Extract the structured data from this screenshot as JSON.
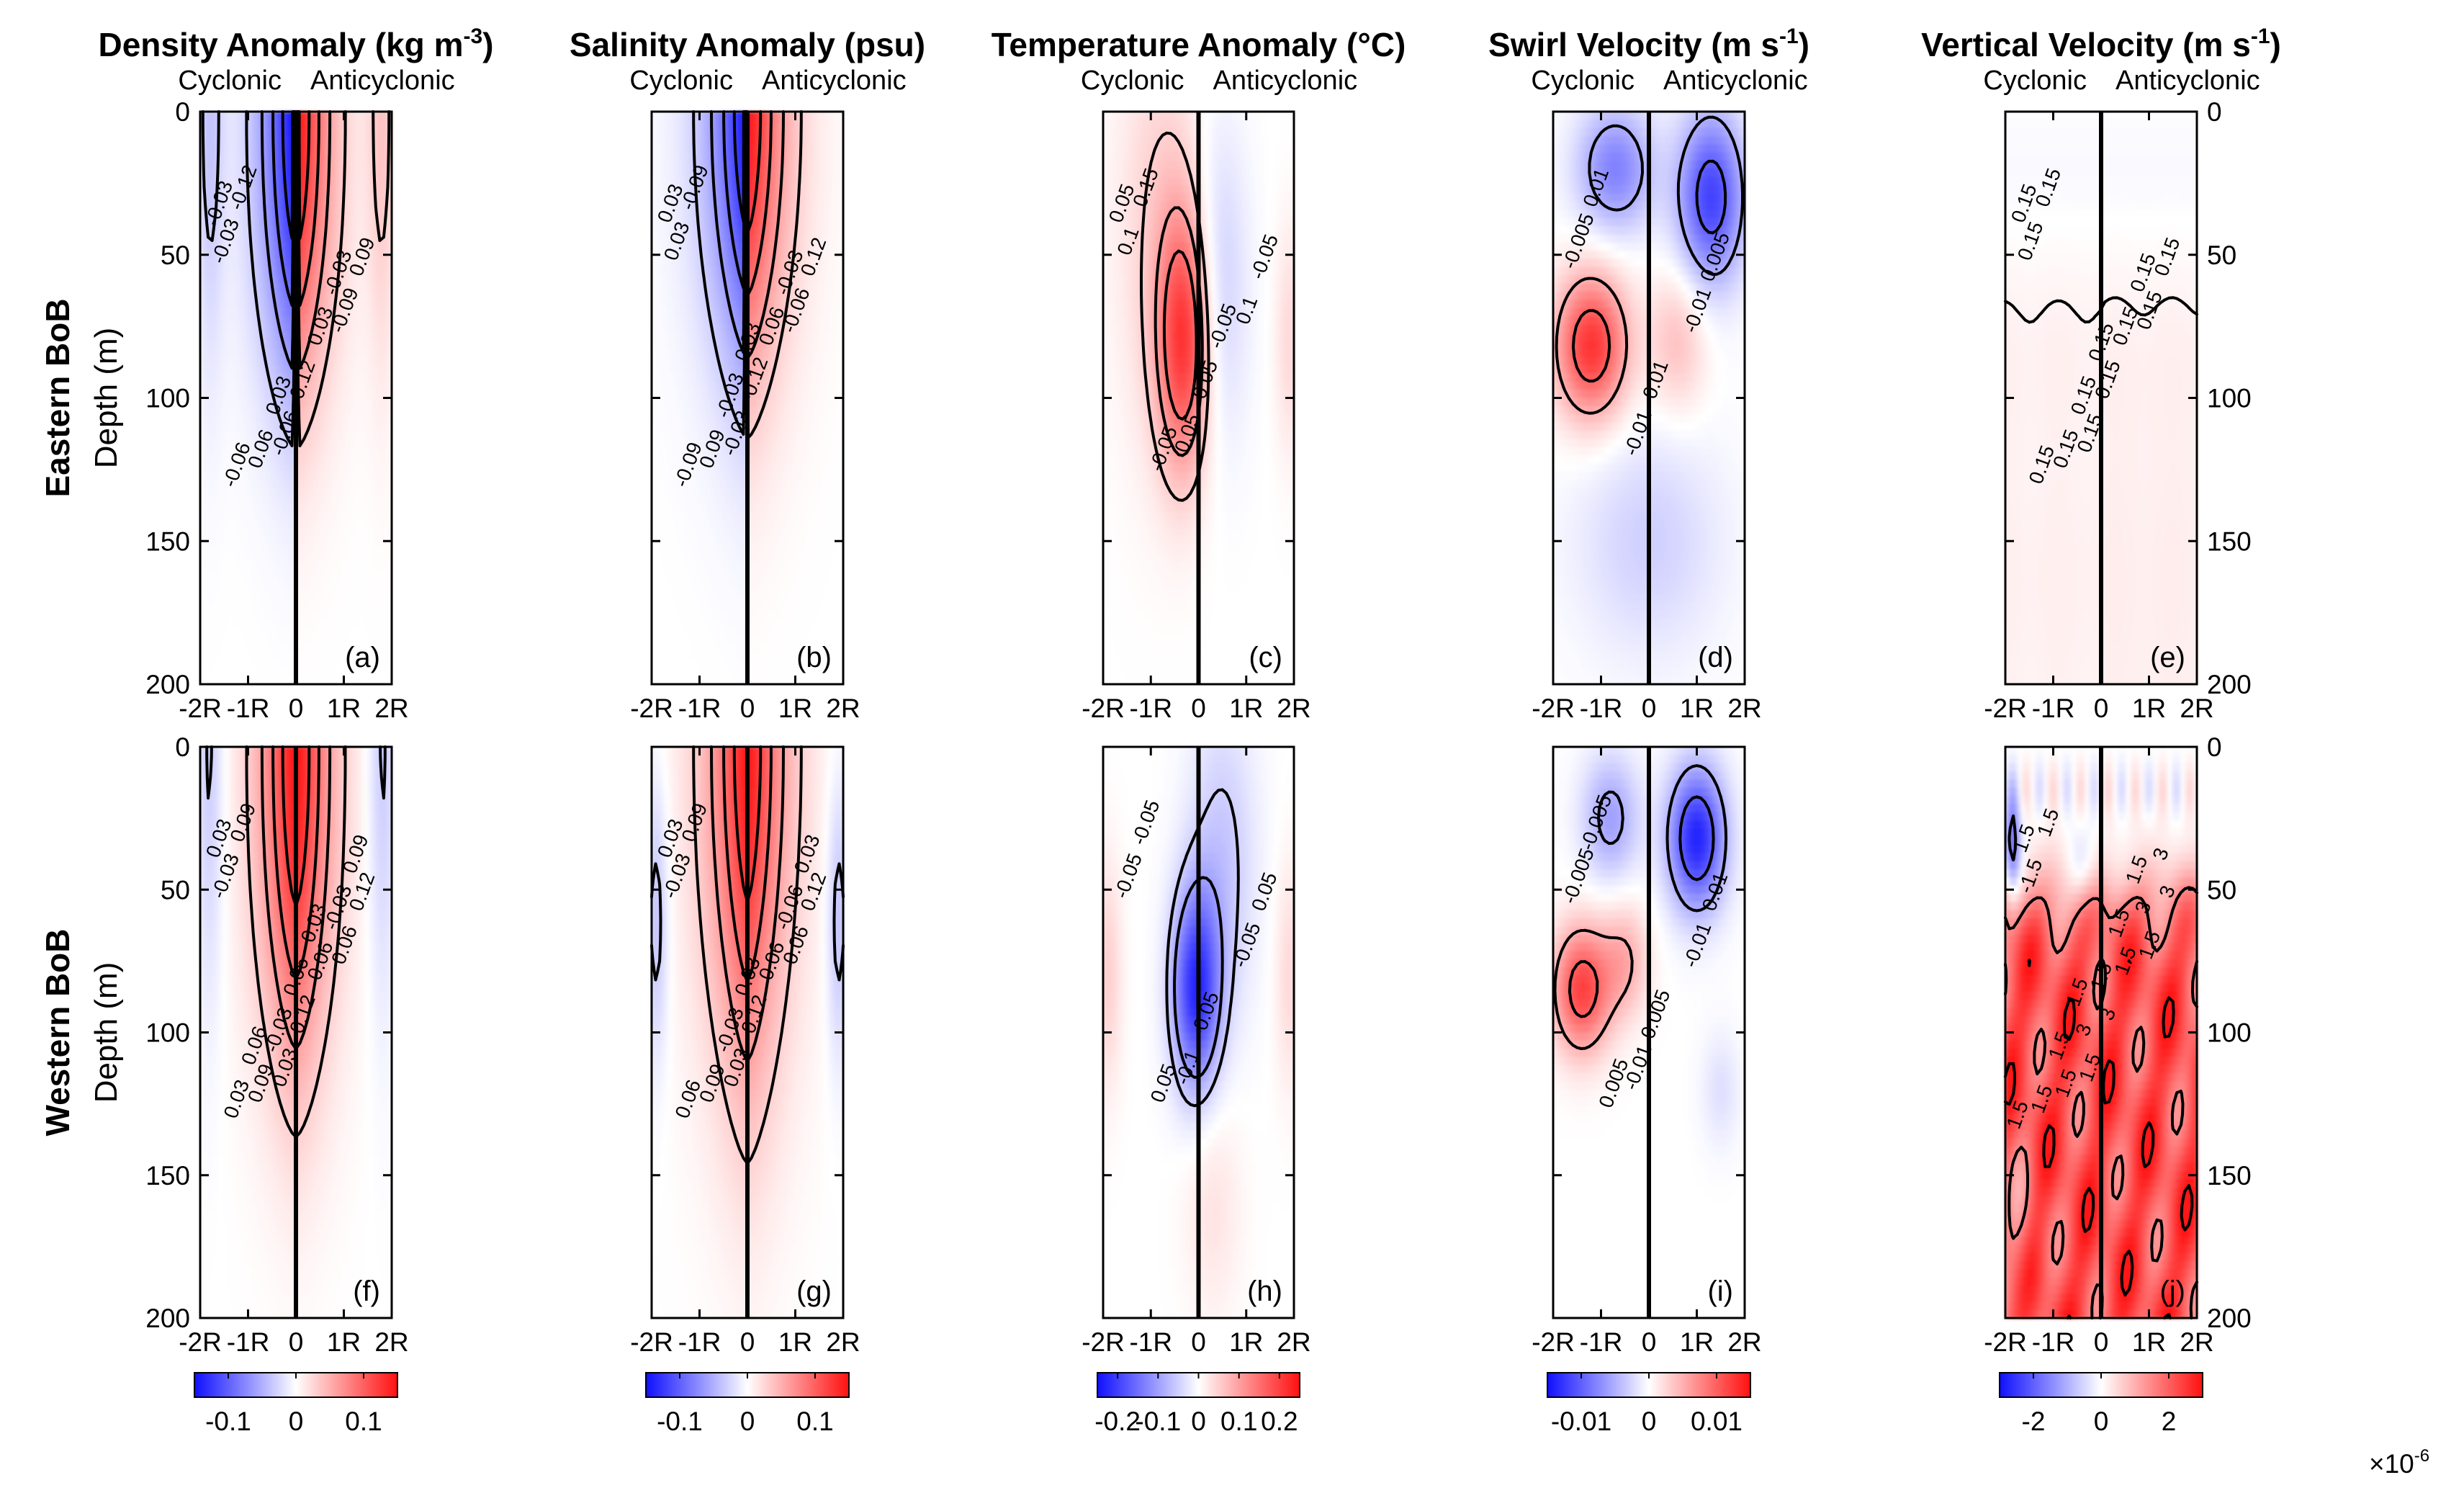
{
  "figure": {
    "row_labels": [
      "Eastern BoB",
      "Western BoB"
    ],
    "ylabel": "Depth (m)",
    "exponent_label": "×10",
    "exponent_power": "-6"
  },
  "chart_data": [
    {
      "type": "heatmap",
      "id": "density",
      "title": "Density Anomaly (kg m",
      "title_sup": "-3",
      "title_end": ")",
      "subtitles": [
        "Cyclonic",
        "Anticyclonic"
      ],
      "x_ticks": [
        "-2R",
        "-1R",
        "0",
        "1R",
        "2R"
      ],
      "y_ticks": [
        "0",
        "50",
        "100",
        "150",
        "200"
      ],
      "ylim": [
        0,
        200
      ],
      "colorbar": {
        "range": [
          -0.15,
          0.15
        ],
        "ticks": [
          "-0.1",
          "0",
          "0.1"
        ],
        "tick_values": [
          -0.1,
          0,
          0.1
        ]
      },
      "panels": [
        {
          "row": "Eastern BoB",
          "letter": "(a)",
          "peak": 0.15,
          "decay": 48,
          "contours": [
            "-0.03",
            "-0.06",
            "-0.09",
            "-0.12",
            "0.12",
            "0.09",
            "0.06",
            "0.03",
            "-0.03",
            "0.03",
            "-0.03",
            "-0.06"
          ]
        },
        {
          "row": "Western BoB",
          "letter": "(f)",
          "peak": 0.15,
          "decay": 60,
          "contours": [
            "-0.03",
            "0.03",
            "0.06",
            "0.09",
            "0.12",
            "0.12",
            "0.09",
            "0.06",
            "0.03",
            "-0.03",
            "-0.03",
            "0.03",
            "0.06",
            "0.09",
            "0.06",
            "0.03"
          ]
        }
      ]
    },
    {
      "type": "heatmap",
      "id": "salinity",
      "title": "Salinity Anomaly (psu)",
      "title_sup": "",
      "title_end": "",
      "subtitles": [
        "Cyclonic",
        "Anticyclonic"
      ],
      "x_ticks": [
        "-2R",
        "-1R",
        "0",
        "1R",
        "2R"
      ],
      "y_ticks": [
        "0",
        "50",
        "100",
        "150",
        "200"
      ],
      "ylim": [
        0,
        200
      ],
      "colorbar": {
        "range": [
          -0.15,
          0.15
        ],
        "ticks": [
          "-0.1",
          "0",
          "0.1"
        ],
        "tick_values": [
          -0.1,
          0,
          0.1
        ]
      },
      "panels": [
        {
          "row": "Eastern BoB",
          "letter": "(b)",
          "peak": 0.15,
          "decay": 50,
          "contours": [
            "0.03",
            "-0.03",
            "-0.06",
            "-0.09",
            "-0.12",
            "0.12",
            "0.09",
            "0.06",
            "0.03",
            "-0.03",
            "-0.03",
            "-0.09",
            "0.03"
          ]
        },
        {
          "row": "Western BoB",
          "letter": "(g)",
          "peak": 0.15,
          "decay": 62,
          "contours": [
            "-0.03",
            "0.03",
            "0.06",
            "0.09",
            "0.12",
            "0.12",
            "0.09",
            "0.06",
            "0.03",
            "-0.03",
            "-0.06",
            "0.06",
            "0.03",
            "0.03"
          ]
        }
      ]
    },
    {
      "type": "heatmap",
      "id": "temperature",
      "title": "Temperature Anomaly (°C)",
      "title_sup": "",
      "title_end": "",
      "subtitles": [
        "Cyclonic",
        "Anticyclonic"
      ],
      "x_ticks": [
        "-2R",
        "-1R",
        "0",
        "1R",
        "2R"
      ],
      "y_ticks": [
        "0",
        "50",
        "100",
        "150",
        "200"
      ],
      "ylim": [
        0,
        200
      ],
      "colorbar": {
        "range": [
          -0.25,
          0.25
        ],
        "ticks": [
          "-0.2",
          "-0.1",
          "0",
          "0.1",
          "0.2"
        ],
        "tick_values": [
          -0.2,
          -0.1,
          0,
          0.1,
          0.2
        ]
      },
      "panels": [
        {
          "row": "Eastern BoB",
          "letter": "(c)",
          "peak": 0.2,
          "decay": 0,
          "contours": [
            "0.1",
            "0.05",
            "0.1",
            "0.15",
            "0.05",
            "-0.05",
            "-0.05",
            "-0.05",
            "0.05"
          ]
        },
        {
          "row": "Western BoB",
          "letter": "(h)",
          "peak": -0.22,
          "decay": 0,
          "contours": [
            "-0.05",
            "-0.1",
            "-0.05",
            "-0.05",
            "-0.05",
            "0.05",
            "0.05"
          ]
        }
      ]
    },
    {
      "type": "heatmap",
      "id": "swirl",
      "title": "Swirl Velocity (m s",
      "title_sup": "-1",
      "title_end": ")",
      "subtitles": [
        "Cyclonic",
        "Anticyclonic"
      ],
      "x_ticks": [
        "-2R",
        "-1R",
        "0",
        "1R",
        "2R"
      ],
      "y_ticks": [
        "0",
        "50",
        "100",
        "150",
        "200"
      ],
      "ylim": [
        0,
        200
      ],
      "colorbar": {
        "range": [
          -0.015,
          0.015
        ],
        "ticks": [
          "-0.01",
          "0",
          "0.01"
        ],
        "tick_values": [
          -0.01,
          0,
          0.01
        ]
      },
      "panels": [
        {
          "row": "Eastern BoB",
          "letter": "(d)",
          "peak": 0.012,
          "decay": 0,
          "contours": [
            "-0.005",
            "-0.01",
            "-0.01",
            "0.01",
            "0.01",
            "0.005"
          ]
        },
        {
          "row": "Western BoB",
          "letter": "(i)",
          "peak": -0.014,
          "decay": 0,
          "contours": [
            "-0.005",
            "-0.01",
            "-0.01",
            "-0.005",
            "0.005",
            "0.01",
            "0.005"
          ]
        }
      ]
    },
    {
      "type": "heatmap",
      "id": "vertical",
      "title": "Vertical Velocity (m s",
      "title_sup": "-1",
      "title_end": ")",
      "subtitles": [
        "Cyclonic",
        "Anticyclonic"
      ],
      "x_ticks": [
        "-2R",
        "-1R",
        "0",
        "1R",
        "2R"
      ],
      "y_ticks": [
        "0",
        "50",
        "100",
        "150",
        "200"
      ],
      "ylim": [
        0,
        200
      ],
      "colorbar": {
        "range": [
          -3,
          3
        ],
        "ticks": [
          "-2",
          "0",
          "2"
        ],
        "tick_values": [
          -2,
          0,
          2
        ],
        "multiplier": "×10^-6"
      },
      "panels": [
        {
          "row": "Eastern BoB",
          "letter": "(e)",
          "peak": 0.2,
          "decay": 0,
          "contours": [
            "0.15",
            "0.15",
            "0.15",
            "0.15",
            "0.15",
            "0.15",
            "0.15",
            "0.15",
            "0.15",
            "0.15",
            "0.15",
            "0.15",
            "0.15"
          ]
        },
        {
          "row": "Western BoB",
          "letter": "(j)",
          "peak": 3,
          "decay": 0,
          "contours": [
            "-1.5",
            "1.5",
            "1.5",
            "1.5",
            "3",
            "3",
            "1.5",
            "1.5",
            "1.5",
            "3",
            "3",
            "1.5",
            "1.5",
            "3",
            "1.5",
            "1.5",
            "1.5",
            "1.5",
            "1.5"
          ]
        }
      ]
    }
  ]
}
